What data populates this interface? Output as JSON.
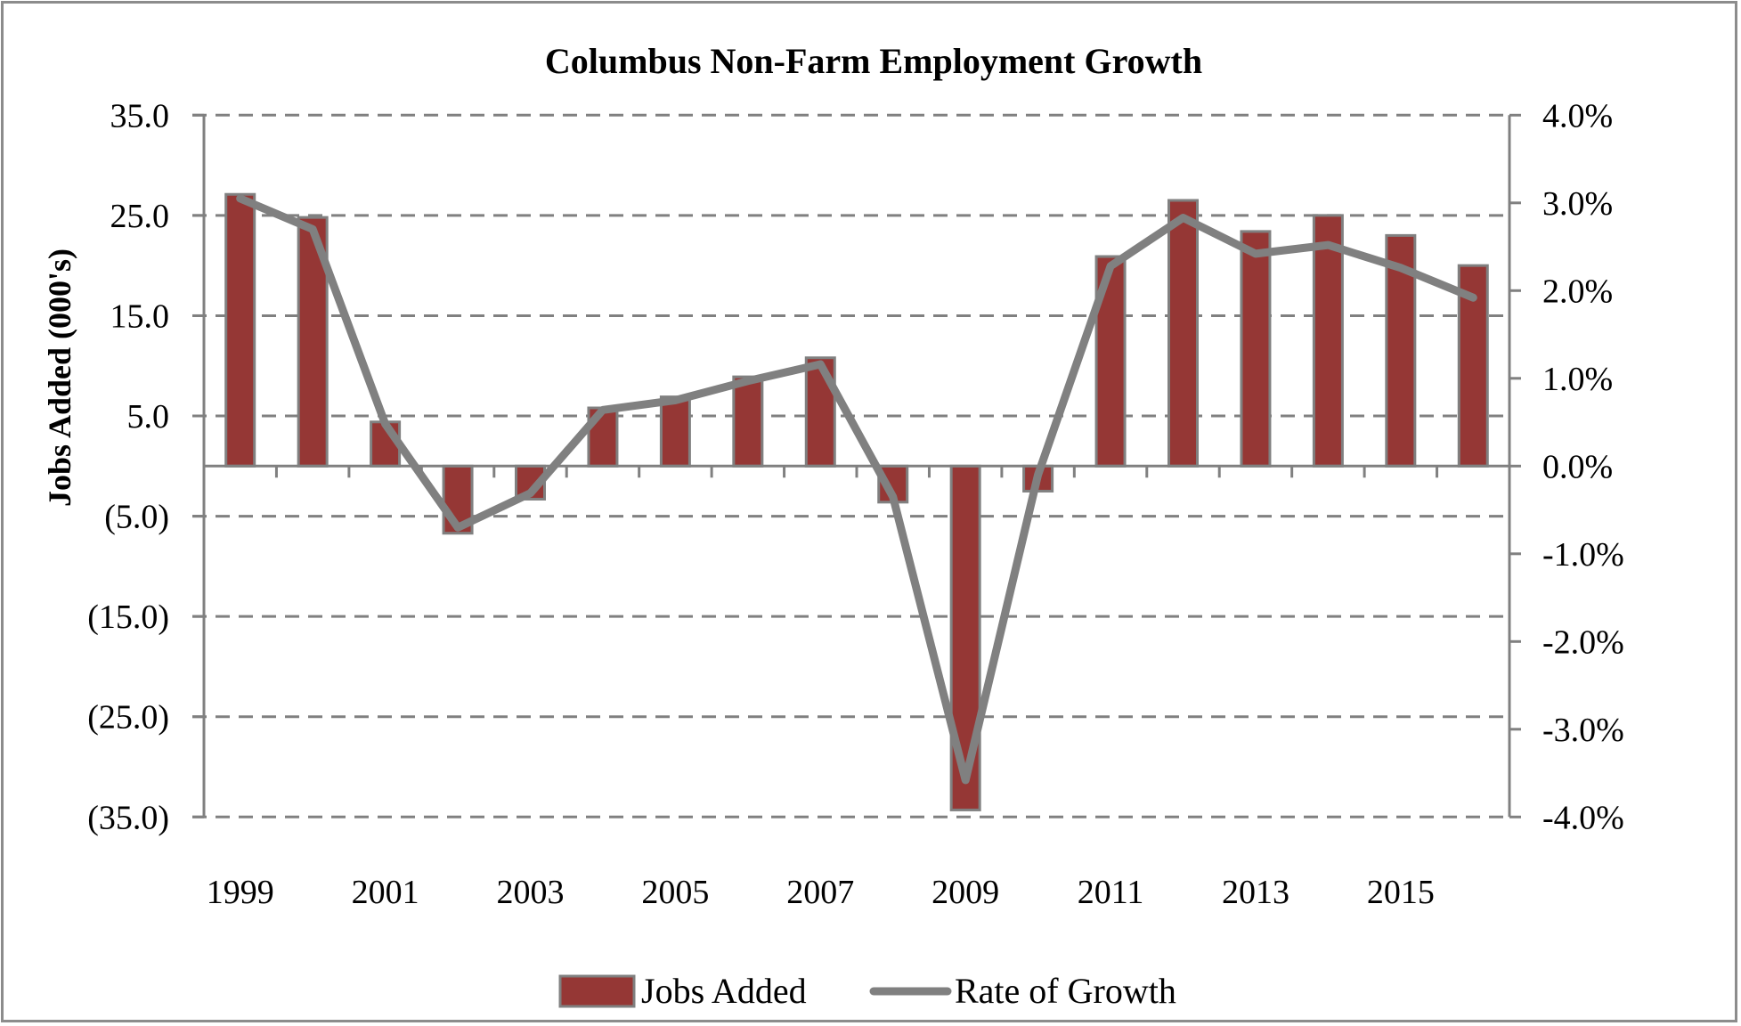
{
  "chart_data": {
    "type": "bar",
    "combo": "bar+line (secondary axis)",
    "title": "Columbus Non-Farm Employment Growth",
    "xlabel": "",
    "ylabel": "Jobs Added (000's)",
    "y2label": "",
    "categories": [
      "1999",
      "2000",
      "2001",
      "2002",
      "2003",
      "2004",
      "2005",
      "2006",
      "2007",
      "2008",
      "2009",
      "2010",
      "2011",
      "2012",
      "2013",
      "2014",
      "2015",
      "2016"
    ],
    "x_tick_labels": [
      "1999",
      "2001",
      "2003",
      "2005",
      "2007",
      "2009",
      "2011",
      "2013",
      "2015"
    ],
    "series": [
      {
        "name": "Jobs Added",
        "type": "bar",
        "axis": "left",
        "color": "#953735",
        "values": [
          27.1,
          24.8,
          4.4,
          -6.7,
          -3.3,
          5.8,
          6.9,
          8.9,
          10.8,
          -3.6,
          -34.3,
          -2.5,
          20.9,
          26.5,
          23.4,
          25.0,
          23.0,
          20.0
        ]
      },
      {
        "name": "Rate of Growth",
        "type": "line",
        "axis": "right",
        "color": "#808080",
        "unit": "%",
        "values": [
          3.05,
          2.7,
          0.48,
          -0.7,
          -0.31,
          0.64,
          0.75,
          0.97,
          1.16,
          -0.35,
          -3.58,
          -0.1,
          2.28,
          2.83,
          2.42,
          2.52,
          2.26,
          1.92
        ]
      }
    ],
    "ylim": [
      -35,
      35
    ],
    "y_ticks": [
      35,
      25,
      15,
      5,
      -5,
      -15,
      -25,
      -35
    ],
    "y_tick_labels": [
      "35.0",
      "25.0",
      "15.0",
      "5.0",
      "(5.0)",
      "(15.0)",
      "(25.0)",
      "(35.0)"
    ],
    "y2lim": [
      -4,
      4
    ],
    "y2_ticks": [
      4,
      3,
      2,
      1,
      0,
      -1,
      -2,
      -3,
      -4
    ],
    "y2_tick_labels": [
      "4.0%",
      "3.0%",
      "2.0%",
      "1.0%",
      "0.0%",
      "-1.0%",
      "-2.0%",
      "-3.0%",
      "-4.0%"
    ],
    "grid": {
      "horizontal": true,
      "style": "dashed",
      "color": "#808080"
    },
    "legend": {
      "position": "bottom",
      "entries": [
        "Jobs Added",
        "Rate of Growth"
      ]
    }
  },
  "legend": {
    "jobs_added": "Jobs Added",
    "rate_of_growth": "Rate of Growth"
  }
}
